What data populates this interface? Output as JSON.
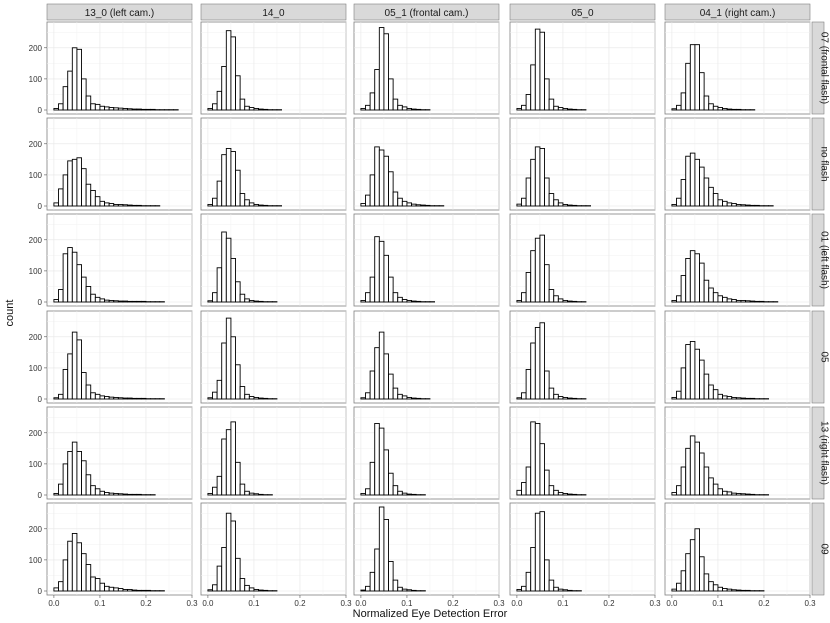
{
  "chart_data": {
    "type": "bar",
    "layout": "facet-grid",
    "xlabel": "Normalized Eye Detection Error",
    "ylabel": "count",
    "xlim": [
      -0.015,
      0.3
    ],
    "ylim": [
      0,
      270
    ],
    "x_ticks": [
      0.0,
      0.1,
      0.2,
      0.3
    ],
    "x_tick_labels": [
      "0.0",
      "0.1",
      "0.2",
      "0.3"
    ],
    "y_ticks": [
      0,
      100,
      200
    ],
    "y_tick_labels": [
      "0",
      "100",
      "200"
    ],
    "grid": true,
    "bin_width": 0.01,
    "bin_starts": [
      0.0,
      0.01,
      0.02,
      0.03,
      0.04,
      0.05,
      0.06,
      0.07,
      0.08,
      0.09,
      0.1,
      0.11,
      0.12,
      0.13,
      0.14,
      0.15,
      0.16,
      0.17,
      0.18,
      0.19,
      0.2,
      0.21,
      0.22,
      0.23,
      0.24,
      0.25,
      0.26,
      0.27,
      0.28,
      0.29
    ],
    "columns": [
      "13_0 (left cam.)",
      "14_0",
      "05_1 (frontal cam.)",
      "05_0",
      "04_1 (right cam.)"
    ],
    "rows": [
      "07 (frontal flash)",
      "no flash",
      "01 (left flash)",
      "05",
      "13 (right flash)",
      "09"
    ],
    "panels": [
      [
        [
          5,
          20,
          75,
          125,
          200,
          195,
          100,
          45,
          20,
          18,
          12,
          10,
          8,
          7,
          6,
          5,
          4,
          3,
          3,
          2,
          2,
          2,
          1,
          1,
          1,
          1,
          1,
          0,
          0,
          0
        ],
        [
          10,
          55,
          100,
          145,
          150,
          155,
          120,
          70,
          50,
          30,
          15,
          10,
          8,
          5,
          5,
          4,
          3,
          2,
          2,
          1,
          1,
          1,
          1,
          0,
          0,
          0,
          0,
          0,
          0,
          0
        ],
        [
          8,
          40,
          155,
          175,
          160,
          120,
          80,
          50,
          25,
          15,
          10,
          6,
          5,
          4,
          3,
          3,
          2,
          2,
          2,
          2,
          1,
          1,
          1,
          1,
          0,
          0,
          0,
          0,
          0,
          0
        ],
        [
          4,
          15,
          95,
          145,
          215,
          190,
          85,
          45,
          20,
          15,
          10,
          8,
          6,
          5,
          4,
          3,
          3,
          2,
          2,
          2,
          1,
          1,
          1,
          1,
          0,
          0,
          0,
          0,
          0,
          0
        ],
        [
          5,
          35,
          100,
          140,
          170,
          140,
          110,
          65,
          30,
          20,
          12,
          8,
          6,
          5,
          4,
          3,
          2,
          2,
          2,
          1,
          1,
          1,
          0,
          0,
          0,
          0,
          0,
          0,
          0,
          0
        ],
        [
          10,
          30,
          100,
          160,
          185,
          155,
          120,
          85,
          45,
          40,
          25,
          15,
          12,
          10,
          8,
          5,
          5,
          3,
          2,
          2,
          2,
          1,
          1,
          1,
          0,
          0,
          0,
          0,
          0,
          0
        ]
      ],
      [
        [
          5,
          20,
          60,
          140,
          255,
          235,
          110,
          35,
          12,
          8,
          5,
          3,
          2,
          1,
          1,
          1,
          0,
          0,
          0,
          0,
          0,
          0,
          0,
          0,
          0,
          0,
          0,
          0,
          0,
          0
        ],
        [
          5,
          25,
          80,
          165,
          185,
          175,
          115,
          40,
          20,
          10,
          5,
          3,
          2,
          1,
          1,
          1,
          0,
          0,
          0,
          0,
          0,
          0,
          0,
          0,
          0,
          0,
          0,
          0,
          0,
          0
        ],
        [
          4,
          30,
          110,
          225,
          205,
          140,
          65,
          25,
          10,
          5,
          3,
          2,
          1,
          1,
          1,
          0,
          0,
          0,
          0,
          0,
          0,
          0,
          0,
          0,
          0,
          0,
          0,
          0,
          0,
          0
        ],
        [
          4,
          22,
          60,
          180,
          260,
          200,
          110,
          40,
          15,
          8,
          5,
          3,
          2,
          1,
          1,
          0,
          0,
          0,
          0,
          0,
          0,
          0,
          0,
          0,
          0,
          0,
          0,
          0,
          0,
          0
        ],
        [
          5,
          25,
          60,
          180,
          210,
          235,
          105,
          35,
          12,
          6,
          4,
          2,
          1,
          1,
          0,
          0,
          0,
          0,
          0,
          0,
          0,
          0,
          0,
          0,
          0,
          0,
          0,
          0,
          0,
          0
        ],
        [
          4,
          20,
          80,
          140,
          250,
          225,
          105,
          40,
          18,
          10,
          5,
          3,
          2,
          1,
          1,
          0,
          0,
          0,
          0,
          0,
          0,
          0,
          0,
          0,
          0,
          0,
          0,
          0,
          0,
          0
        ]
      ],
      [
        [
          5,
          15,
          55,
          130,
          265,
          245,
          100,
          35,
          15,
          10,
          5,
          3,
          2,
          1,
          1,
          0,
          0,
          0,
          0,
          0,
          0,
          0,
          0,
          0,
          0,
          0,
          0,
          0,
          0,
          0
        ],
        [
          8,
          35,
          100,
          190,
          180,
          160,
          110,
          45,
          25,
          15,
          10,
          6,
          4,
          3,
          2,
          1,
          1,
          1,
          0,
          0,
          0,
          0,
          0,
          0,
          0,
          0,
          0,
          0,
          0,
          0
        ],
        [
          5,
          30,
          80,
          210,
          195,
          150,
          80,
          30,
          15,
          8,
          5,
          3,
          2,
          1,
          1,
          1,
          0,
          0,
          0,
          0,
          0,
          0,
          0,
          0,
          0,
          0,
          0,
          0,
          0,
          0
        ],
        [
          4,
          20,
          90,
          165,
          215,
          145,
          80,
          35,
          15,
          10,
          5,
          3,
          2,
          1,
          1,
          0,
          0,
          0,
          0,
          0,
          0,
          0,
          0,
          0,
          0,
          0,
          0,
          0,
          0,
          0
        ],
        [
          5,
          20,
          105,
          230,
          215,
          145,
          70,
          30,
          12,
          6,
          3,
          2,
          1,
          1,
          0,
          0,
          0,
          0,
          0,
          0,
          0,
          0,
          0,
          0,
          0,
          0,
          0,
          0,
          0,
          0
        ],
        [
          3,
          15,
          60,
          135,
          270,
          230,
          95,
          35,
          12,
          6,
          4,
          2,
          1,
          1,
          0,
          0,
          0,
          0,
          0,
          0,
          0,
          0,
          0,
          0,
          0,
          0,
          0,
          0,
          0,
          0
        ]
      ],
      [
        [
          5,
          15,
          50,
          145,
          260,
          250,
          100,
          35,
          12,
          8,
          5,
          3,
          2,
          1,
          1,
          0,
          0,
          0,
          0,
          0,
          0,
          0,
          0,
          0,
          0,
          0,
          0,
          0,
          0,
          0
        ],
        [
          6,
          25,
          90,
          150,
          190,
          185,
          90,
          40,
          20,
          10,
          5,
          3,
          2,
          1,
          1,
          1,
          0,
          0,
          0,
          0,
          0,
          0,
          0,
          0,
          0,
          0,
          0,
          0,
          0,
          0
        ],
        [
          5,
          30,
          95,
          165,
          205,
          215,
          120,
          40,
          20,
          10,
          5,
          3,
          2,
          1,
          1,
          0,
          0,
          0,
          0,
          0,
          0,
          0,
          0,
          0,
          0,
          0,
          0,
          0,
          0,
          0
        ],
        [
          4,
          20,
          95,
          180,
          230,
          245,
          90,
          35,
          15,
          8,
          5,
          3,
          2,
          1,
          1,
          0,
          0,
          0,
          0,
          0,
          0,
          0,
          0,
          0,
          0,
          0,
          0,
          0,
          0,
          0
        ],
        [
          15,
          40,
          90,
          235,
          230,
          165,
          80,
          30,
          15,
          8,
          5,
          3,
          2,
          1,
          1,
          0,
          0,
          0,
          0,
          0,
          0,
          0,
          0,
          0,
          0,
          0,
          0,
          0,
          0,
          0
        ],
        [
          5,
          15,
          60,
          140,
          250,
          255,
          100,
          35,
          12,
          6,
          4,
          2,
          1,
          1,
          0,
          0,
          0,
          0,
          0,
          0,
          0,
          0,
          0,
          0,
          0,
          0,
          0,
          0,
          0,
          0
        ]
      ],
      [
        [
          4,
          15,
          55,
          150,
          210,
          210,
          120,
          45,
          20,
          12,
          8,
          5,
          3,
          2,
          2,
          1,
          1,
          1,
          0,
          0,
          0,
          0,
          0,
          0,
          0,
          0,
          0,
          0,
          0,
          0
        ],
        [
          5,
          25,
          85,
          160,
          170,
          150,
          125,
          90,
          60,
          40,
          20,
          15,
          10,
          8,
          5,
          4,
          3,
          2,
          2,
          1,
          1,
          1,
          0,
          0,
          0,
          0,
          0,
          0,
          0,
          0
        ],
        [
          5,
          20,
          85,
          140,
          165,
          155,
          125,
          70,
          45,
          30,
          20,
          15,
          10,
          8,
          5,
          5,
          4,
          3,
          2,
          2,
          1,
          1,
          1,
          0,
          0,
          0,
          0,
          0,
          0,
          0
        ],
        [
          5,
          25,
          100,
          175,
          185,
          160,
          125,
          80,
          45,
          30,
          15,
          10,
          8,
          5,
          4,
          3,
          2,
          2,
          1,
          1,
          1,
          0,
          0,
          0,
          0,
          0,
          0,
          0,
          0,
          0
        ],
        [
          8,
          30,
          90,
          150,
          190,
          170,
          135,
          90,
          55,
          35,
          20,
          12,
          10,
          6,
          5,
          4,
          3,
          2,
          1,
          1,
          1,
          0,
          0,
          0,
          0,
          0,
          0,
          0,
          0,
          0
        ],
        [
          6,
          25,
          65,
          120,
          165,
          200,
          110,
          55,
          30,
          20,
          12,
          8,
          6,
          4,
          3,
          2,
          2,
          1,
          1,
          1,
          0,
          0,
          0,
          0,
          0,
          0,
          0,
          0,
          0,
          0
        ]
      ]
    ]
  }
}
